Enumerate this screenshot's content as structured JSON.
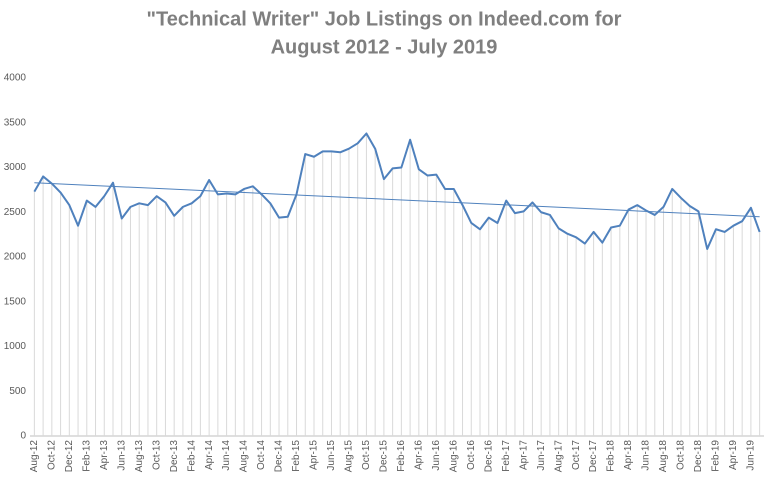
{
  "chart_data": {
    "type": "line",
    "title": [
      "\"Technical Writer\" Job Listings on Indeed.com for",
      "August 2012 - July 2019"
    ],
    "categories": [
      "Aug-12",
      null,
      "Oct-12",
      null,
      "Dec-12",
      null,
      "Feb-13",
      null,
      "Apr-13",
      null,
      "Jun-13",
      null,
      "Aug-13",
      null,
      "Oct-13",
      null,
      "Dec-13",
      null,
      "Feb-14",
      null,
      "Apr-14",
      null,
      "Jun-14",
      null,
      "Aug-14",
      null,
      "Oct-14",
      null,
      "Dec-14",
      null,
      "Feb-15",
      null,
      "Apr-15",
      null,
      "Jun-15",
      null,
      "Aug-15",
      null,
      "Oct-15",
      null,
      "Dec-15",
      null,
      "Feb-16",
      null,
      "Apr-16",
      null,
      "Jun-16",
      null,
      "Aug-16",
      null,
      "Oct-16",
      null,
      "Dec-16",
      null,
      "Feb-17",
      null,
      "Apr-17",
      null,
      "Jun-17",
      null,
      "Aug-17",
      null,
      "Oct-17",
      null,
      "Dec-17",
      null,
      "Feb-18",
      null,
      "Apr-18",
      null,
      "Jun-18",
      null,
      "Aug-18",
      null,
      "Oct-18",
      null,
      "Dec-18",
      null,
      "Feb-19",
      null,
      "Apr-19",
      null,
      "Jun-19",
      null
    ],
    "values": [
      2730,
      2900,
      2820,
      2720,
      2580,
      2350,
      2630,
      2560,
      2680,
      2830,
      2430,
      2560,
      2600,
      2580,
      2680,
      2610,
      2460,
      2560,
      2600,
      2680,
      2860,
      2700,
      2710,
      2700,
      2760,
      2790,
      2700,
      2600,
      2440,
      2450,
      2700,
      3150,
      3120,
      3180,
      3180,
      3170,
      3210,
      3270,
      3380,
      3210,
      2870,
      2990,
      3000,
      3310,
      2980,
      2910,
      2920,
      2760,
      2760,
      2580,
      2380,
      2310,
      2440,
      2380,
      2630,
      2490,
      2510,
      2610,
      2500,
      2470,
      2320,
      2260,
      2220,
      2150,
      2280,
      2160,
      2330,
      2350,
      2530,
      2580,
      2520,
      2470,
      2560,
      2760,
      2660,
      2570,
      2510,
      2090,
      2310,
      2280,
      2350,
      2400,
      2550,
      2280
    ],
    "color": "#4f81bd",
    "trendline": {
      "values": [
        2830,
        2450
      ],
      "color": "#4f81bd"
    },
    "drop_lines": true,
    "ylim": [
      0,
      4000
    ],
    "yticks": [
      0,
      500,
      1000,
      1500,
      2000,
      2500,
      3000,
      3500,
      4000
    ],
    "grid": false
  }
}
